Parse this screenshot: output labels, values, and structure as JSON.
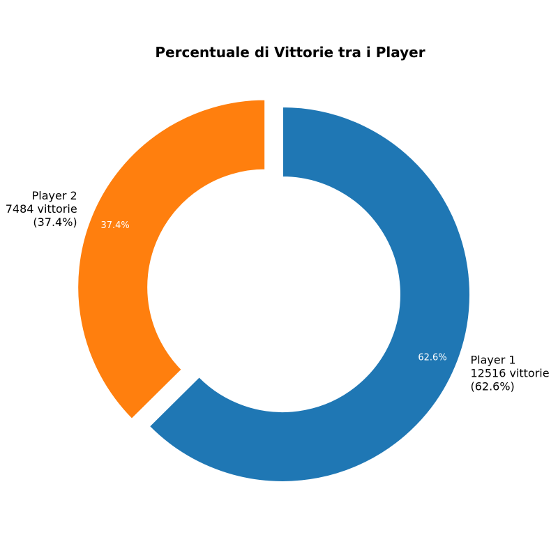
{
  "chart_data": {
    "type": "pie",
    "variant": "donut",
    "title": "Percentuale di Vittorie tra i Player",
    "start_angle_deg": 90,
    "direction": "clockwise",
    "slices": [
      {
        "name": "Player 1",
        "value": 12516,
        "percent": 62.6,
        "label_lines": [
          "Player 1",
          "12516 vittorie",
          "(62.6%)"
        ],
        "pct_text": "62.6%",
        "color": "#1f77b4",
        "explode": 0.0
      },
      {
        "name": "Player 2",
        "value": 7484,
        "percent": 37.4,
        "label_lines": [
          "Player 2",
          "7484 vittorie",
          "(37.4%)"
        ],
        "pct_text": "37.4%",
        "color": "#ff7f0e",
        "explode": 0.1
      }
    ]
  }
}
